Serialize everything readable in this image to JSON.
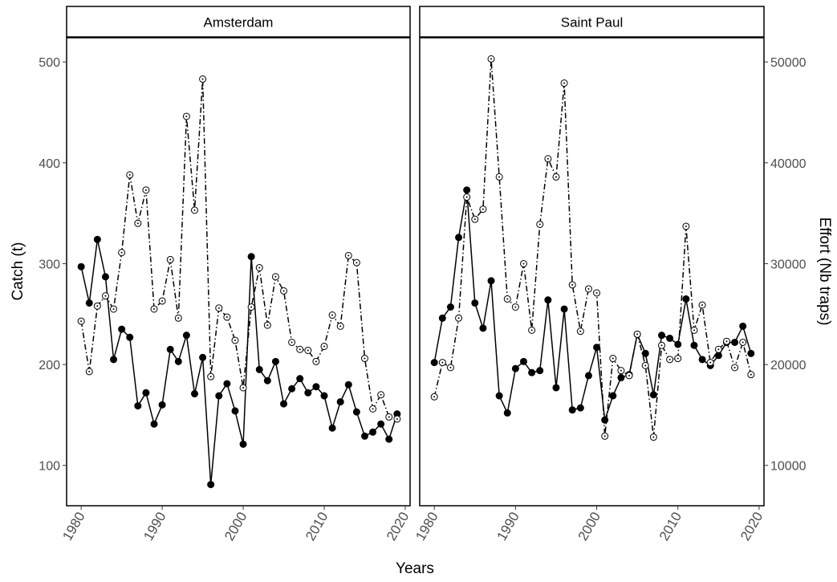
{
  "chart_data": [
    {
      "type": "line",
      "title": "Amsterdam",
      "xlabel": "Years",
      "ylabel": "Catch (t)",
      "x": [
        1980,
        1981,
        1982,
        1983,
        1984,
        1985,
        1986,
        1987,
        1988,
        1989,
        1990,
        1991,
        1992,
        1993,
        1994,
        1995,
        1996,
        1997,
        1998,
        1999,
        2000,
        2001,
        2002,
        2003,
        2004,
        2005,
        2006,
        2007,
        2008,
        2009,
        2010,
        2011,
        2012,
        2013,
        2014,
        2015,
        2016,
        2017,
        2018,
        2019
      ],
      "series": [
        {
          "color": "#000000",
          "marker": "filled",
          "line": "solid",
          "values": [
            297,
            261,
            324,
            287,
            205,
            235,
            227,
            159,
            172,
            141,
            160,
            215,
            203,
            229,
            171,
            207,
            81,
            169,
            181,
            154,
            121,
            307,
            195,
            184,
            203,
            161,
            176,
            186,
            172,
            178,
            169,
            137,
            163,
            180,
            153,
            129,
            133,
            141,
            126,
            151
          ]
        },
        {
          "color": "#000000",
          "marker": "open",
          "line": "dashdot",
          "axis": "y2",
          "values": [
            24300,
            19300,
            25800,
            26800,
            25500,
            31100,
            38800,
            34000,
            37300,
            25500,
            26300,
            30400,
            24600,
            44600,
            35300,
            48300,
            18800,
            25600,
            24700,
            22400,
            17700,
            25700,
            29600,
            23900,
            28700,
            27300,
            22200,
            21500,
            21400,
            20300,
            21800,
            24900,
            23800,
            30800,
            30100,
            20600,
            15600,
            17000,
            14800,
            14600
          ]
        }
      ],
      "xlim": [
        1978.2,
        2020.6
      ],
      "xticks": [
        1980,
        1990,
        2000,
        2010,
        2020
      ],
      "ylim": [
        60,
        524
      ],
      "yticks": [
        100,
        200,
        300,
        400,
        500
      ],
      "y2lim": [
        6000,
        52400
      ]
    },
    {
      "type": "line",
      "title": "Saint Paul",
      "y2label": "Effort (Nb traps)",
      "x": [
        1980,
        1981,
        1982,
        1983,
        1984,
        1985,
        1986,
        1987,
        1988,
        1989,
        1990,
        1991,
        1992,
        1993,
        1994,
        1995,
        1996,
        1997,
        1998,
        1999,
        2000,
        2001,
        2002,
        2003,
        2004,
        2005,
        2006,
        2007,
        2008,
        2009,
        2010,
        2011,
        2012,
        2013,
        2014,
        2015,
        2016,
        2017,
        2018,
        2019
      ],
      "series": [
        {
          "color": "#000000",
          "marker": "filled",
          "line": "solid",
          "values": [
            202,
            246,
            257,
            326,
            373,
            261,
            236,
            283,
            169,
            152,
            196,
            203,
            192,
            194,
            264,
            177,
            255,
            155,
            157,
            189,
            217,
            145,
            169,
            187,
            190,
            230,
            211,
            170,
            229,
            226,
            220,
            265,
            219,
            205,
            199,
            209,
            222,
            222,
            238,
            211
          ]
        },
        {
          "color": "#000000",
          "marker": "open",
          "line": "dashdot",
          "axis": "y2",
          "values": [
            16800,
            20200,
            19700,
            24600,
            36600,
            34400,
            35400,
            50300,
            38600,
            26500,
            25700,
            30000,
            23400,
            33900,
            40400,
            38600,
            47900,
            27900,
            23300,
            27500,
            27100,
            12900,
            20600,
            19400,
            18900,
            23000,
            19900,
            12800,
            21900,
            20500,
            20600,
            33700,
            23400,
            25900,
            20200,
            21500,
            22300,
            19700,
            22200,
            19000
          ]
        }
      ],
      "xlim": [
        1978.2,
        2020.6
      ],
      "xticks": [
        1980,
        1990,
        2000,
        2010,
        2020
      ],
      "ylim": [
        60,
        524
      ],
      "y2lim": [
        6000,
        52400
      ],
      "y2ticks": [
        10000,
        20000,
        30000,
        40000,
        50000
      ]
    }
  ]
}
